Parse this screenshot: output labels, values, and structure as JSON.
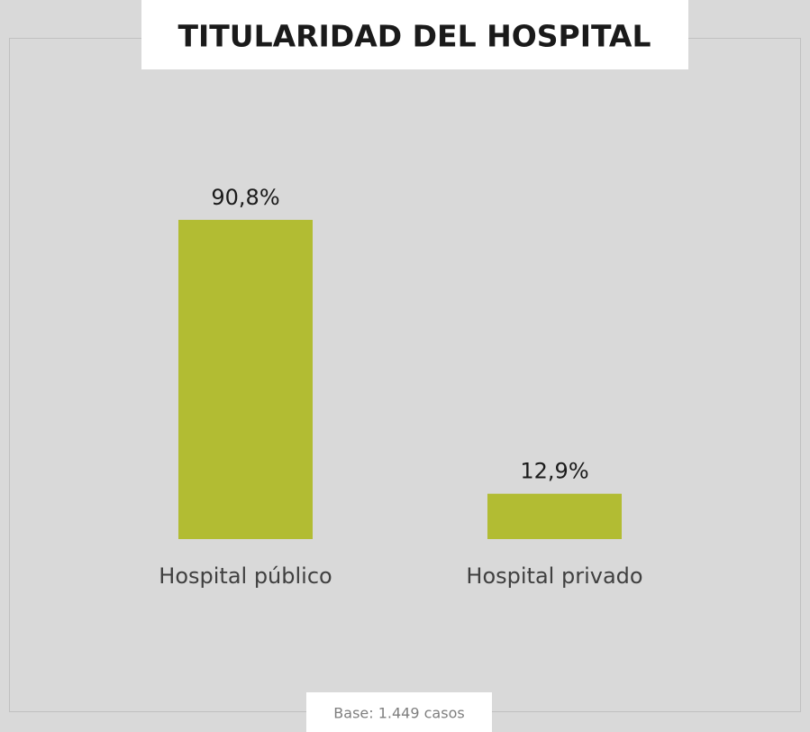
{
  "chart_data": {
    "type": "bar",
    "title": "TITULARIDAD DEL HOSPITAL",
    "categories": [
      "Hospital público",
      "Hospital privado"
    ],
    "values": [
      90.8,
      12.9
    ],
    "value_labels": [
      "90,8%",
      "12,9%"
    ],
    "color": "#b2bc33",
    "note": "Base: 1.449 casos"
  }
}
